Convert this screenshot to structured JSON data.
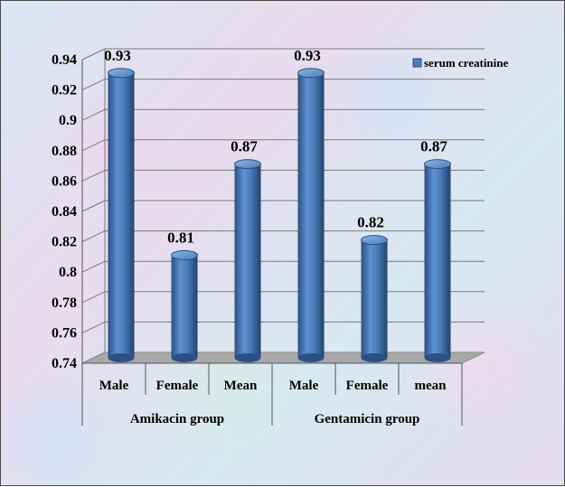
{
  "chart_data": {
    "type": "bar",
    "style": "3d-cylinder",
    "groups": [
      {
        "label": "Amikacin group",
        "categories": [
          "Male",
          "Female",
          "Mean"
        ]
      },
      {
        "label": "Gentamicin group",
        "categories": [
          "Male",
          "Female",
          "mean"
        ]
      }
    ],
    "series": [
      {
        "name": "serum creatinine",
        "values": [
          0.93,
          0.81,
          0.87,
          0.93,
          0.82,
          0.87
        ],
        "color": "#4a7ebb"
      }
    ],
    "data_labels": [
      "0.93",
      "0.81",
      "0.87",
      "0.93",
      "0.82",
      "0.87"
    ],
    "ylim": [
      0.74,
      0.94
    ],
    "yticks": [
      0.74,
      0.76,
      0.78,
      0.8,
      0.82,
      0.84,
      0.86,
      0.88,
      0.9,
      0.92,
      0.94
    ],
    "ytick_labels": [
      "0.74",
      "0.76",
      "0.78",
      "0.8",
      "0.82",
      "0.84",
      "0.86",
      "0.88",
      "0.9",
      "0.92",
      "0.94"
    ],
    "grid": true,
    "legend_position": "top-right"
  }
}
